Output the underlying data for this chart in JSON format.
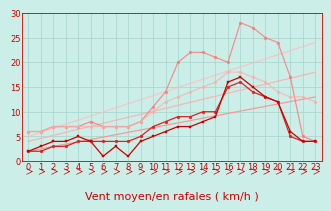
{
  "background_color": "#cceee8",
  "grid_color": "#aad8d0",
  "xlabel": "Vent moyen/en rafales ( km/h )",
  "xlim": [
    -0.5,
    23.5
  ],
  "ylim": [
    0,
    30
  ],
  "xticks": [
    0,
    1,
    2,
    3,
    4,
    5,
    6,
    7,
    8,
    9,
    10,
    11,
    12,
    13,
    14,
    15,
    16,
    17,
    18,
    19,
    20,
    21,
    22,
    23
  ],
  "yticks": [
    0,
    5,
    10,
    15,
    20,
    25,
    30
  ],
  "lines": [
    {
      "comment": "dark red jagged line with square markers - goes low with dips",
      "x": [
        0,
        1,
        2,
        3,
        4,
        5,
        6,
        7,
        8,
        9,
        10,
        11,
        12,
        13,
        14,
        15,
        16,
        17,
        18,
        19,
        20,
        21,
        22,
        23
      ],
      "y": [
        2,
        3,
        4,
        4,
        5,
        4,
        1,
        3,
        1,
        4,
        5,
        6,
        7,
        7,
        8,
        9,
        16,
        17,
        15,
        13,
        12,
        6,
        4,
        4
      ],
      "color": "#cc0000",
      "linewidth": 0.9,
      "marker": "s",
      "markersize": 2.0,
      "alpha": 1.0,
      "zorder": 5
    },
    {
      "comment": "medium dark red line with small markers - moderate rise",
      "x": [
        0,
        1,
        2,
        3,
        4,
        5,
        6,
        7,
        8,
        9,
        10,
        11,
        12,
        13,
        14,
        15,
        16,
        17,
        18,
        19,
        20,
        21,
        22,
        23
      ],
      "y": [
        2,
        2,
        3,
        3,
        4,
        4,
        4,
        4,
        4,
        5,
        7,
        8,
        9,
        9,
        10,
        10,
        15,
        16,
        14,
        13,
        12,
        5,
        4,
        4
      ],
      "color": "#dd2222",
      "linewidth": 0.9,
      "marker": "o",
      "markersize": 2.0,
      "alpha": 1.0,
      "zorder": 4
    },
    {
      "comment": "straight diagonal line 1 - light pink no markers",
      "x": [
        0,
        23
      ],
      "y": [
        2,
        13
      ],
      "color": "#ff9090",
      "linewidth": 0.9,
      "marker": null,
      "markersize": 0,
      "alpha": 0.9,
      "zorder": 2
    },
    {
      "comment": "straight diagonal line 2 - light pink slightly steeper",
      "x": [
        0,
        23
      ],
      "y": [
        4,
        18
      ],
      "color": "#ffaaaa",
      "linewidth": 0.9,
      "marker": null,
      "markersize": 0,
      "alpha": 0.8,
      "zorder": 2
    },
    {
      "comment": "straight diagonal line 3 - light pink steeper",
      "x": [
        0,
        23
      ],
      "y": [
        5,
        24
      ],
      "color": "#ffbbbb",
      "linewidth": 0.9,
      "marker": null,
      "markersize": 0,
      "alpha": 0.75,
      "zorder": 2
    },
    {
      "comment": "light pink jagged line with circle markers - top line with peaks",
      "x": [
        0,
        1,
        2,
        3,
        4,
        5,
        6,
        7,
        8,
        9,
        10,
        11,
        12,
        13,
        14,
        15,
        16,
        17,
        18,
        19,
        20,
        21,
        22,
        23
      ],
      "y": [
        6,
        6,
        7,
        7,
        7,
        8,
        7,
        7,
        7,
        8,
        11,
        14,
        20,
        22,
        22,
        21,
        20,
        28,
        27,
        25,
        24,
        17,
        5,
        4
      ],
      "color": "#ff7777",
      "linewidth": 0.9,
      "marker": "o",
      "markersize": 2.0,
      "alpha": 0.8,
      "zorder": 3
    },
    {
      "comment": "light pink with circle markers - second from top",
      "x": [
        0,
        1,
        2,
        3,
        4,
        5,
        6,
        7,
        8,
        9,
        10,
        11,
        12,
        13,
        14,
        15,
        16,
        17,
        18,
        19,
        20,
        21,
        22,
        23
      ],
      "y": [
        6,
        6,
        7,
        7,
        7,
        7,
        7,
        7,
        7,
        8,
        10,
        12,
        13,
        14,
        15,
        16,
        18,
        18,
        17,
        16,
        14,
        13,
        13,
        12
      ],
      "color": "#ffaaaa",
      "linewidth": 0.9,
      "marker": "o",
      "markersize": 2.0,
      "alpha": 0.7,
      "zorder": 3
    }
  ],
  "arrow_color": "#cc0000",
  "xlabel_color": "#cc0000",
  "xlabel_fontsize": 8,
  "tick_fontsize": 6,
  "tick_color": "#cc0000"
}
